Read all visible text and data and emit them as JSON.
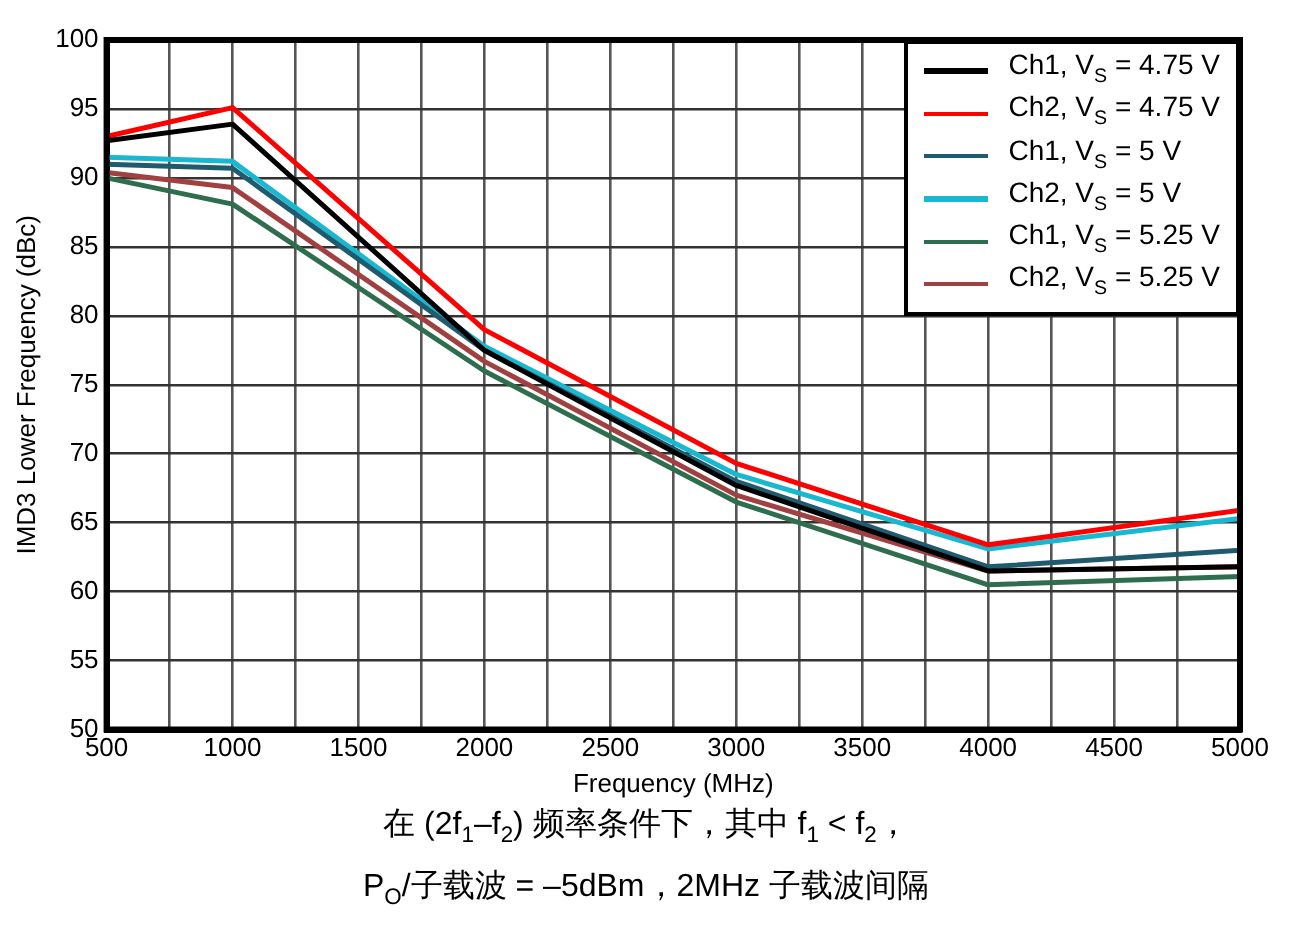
{
  "chart_data": {
    "type": "line",
    "xlabel": "Frequency (MHz)",
    "ylabel": "IMD3 Lower Frequency (dBc)",
    "x": [
      500,
      1000,
      2000,
      3000,
      4000,
      5000
    ],
    "xlim": [
      500,
      5000
    ],
    "xticks": [
      500,
      {
        "value": 750,
        "label": null
      },
      1000,
      {
        "value": 1250,
        "label": null
      },
      1500,
      {
        "value": 1750,
        "label": null
      },
      2000,
      {
        "value": 2250,
        "label": null
      },
      2500,
      {
        "value": 2750,
        "label": null
      },
      3000,
      {
        "value": 3250,
        "label": null
      },
      3500,
      {
        "value": 3750,
        "label": null
      },
      4000,
      {
        "value": 4250,
        "label": null
      },
      4500,
      {
        "value": 4750,
        "label": null
      },
      5000
    ],
    "ylim": [
      50,
      100
    ],
    "yticks": [
      50,
      55,
      60,
      65,
      70,
      75,
      80,
      85,
      90,
      95,
      100
    ],
    "grid": true,
    "legend": "top right",
    "marker": "none",
    "line_style": "solid",
    "series": [
      {
        "name": "Ch1, V$_{S}$ = 4.75 V",
        "color": "#000000",
        "values": [
          92.7,
          93.9,
          77.5,
          67.7,
          61.5,
          61.8
        ]
      },
      {
        "name": "Ch2, V$_{S}$ = 4.75 V",
        "color": "#ff0000",
        "values": [
          93,
          95.1,
          79,
          69.3,
          63.4,
          65.9
        ]
      },
      {
        "name": "Ch1, V$_{S}$ = 5 V",
        "color": "#1f5a6e",
        "values": [
          91,
          90.7,
          77.5,
          68,
          61.8,
          63
        ]
      },
      {
        "name": "Ch2, V$_{S}$ = 5 V",
        "color": "#1ab8d0",
        "values": [
          91.5,
          91.2,
          77.8,
          68.5,
          63.1,
          65.3
        ]
      },
      {
        "name": "Ch1, V$_{S}$ = 5.25 V",
        "color": "#2e6e4e",
        "values": [
          90,
          88.1,
          76,
          66.5,
          60.5,
          61.1
        ]
      },
      {
        "name": "Ch2, V$_{S}$ = 5.25 V",
        "color": "#a04040",
        "values": [
          90.4,
          89.3,
          76.7,
          67,
          61.5,
          61.8
        ]
      }
    ],
    "annotations": [
      "在 (2f$_{1}$–f$_{2}$) 频率条件下，其中 f$_{1}$ < f$_{2}$，",
      "P$_{O}$/子载波 = –5dBm，2MHz 子载波间隔"
    ]
  }
}
